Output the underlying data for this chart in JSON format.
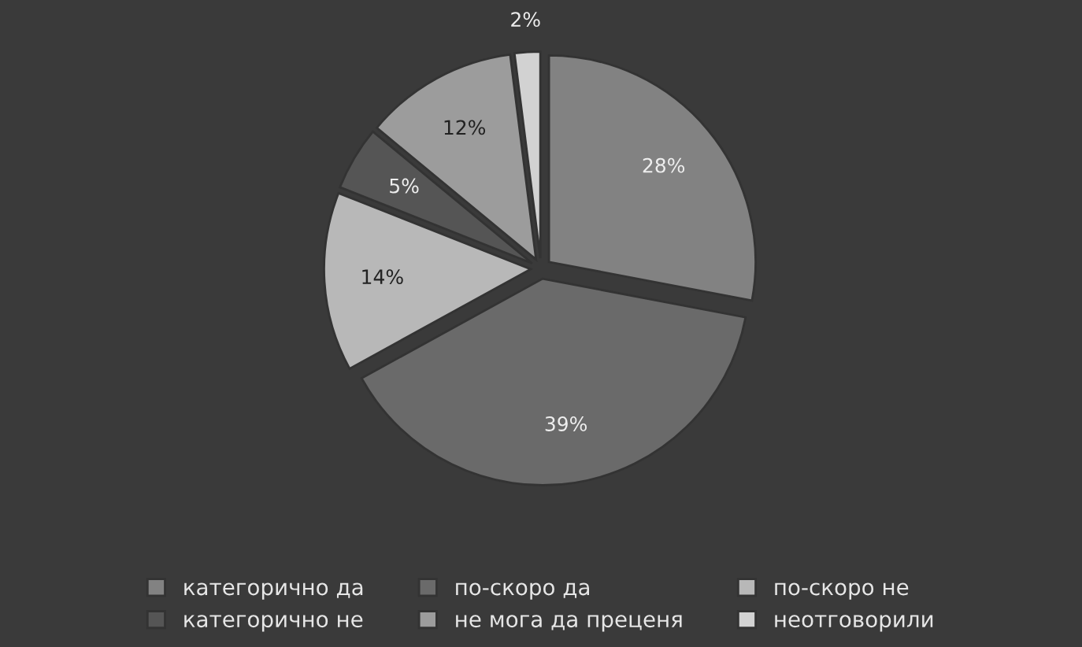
{
  "chart_data": {
    "type": "pie",
    "categories": [
      "категорично да",
      "по-скоро да",
      "по-скоро не",
      "категорично не",
      "не мога да преценя",
      "неотговорили"
    ],
    "values": [
      28,
      39,
      14,
      5,
      12,
      2
    ],
    "value_labels": [
      "28%",
      "39%",
      "14%",
      "5%",
      "12%",
      "2%"
    ],
    "colors": [
      "#828282",
      "#6a6a6a",
      "#b8b8b8",
      "#555555",
      "#9c9c9c",
      "#d2d2d2"
    ],
    "legend": "bottom"
  }
}
